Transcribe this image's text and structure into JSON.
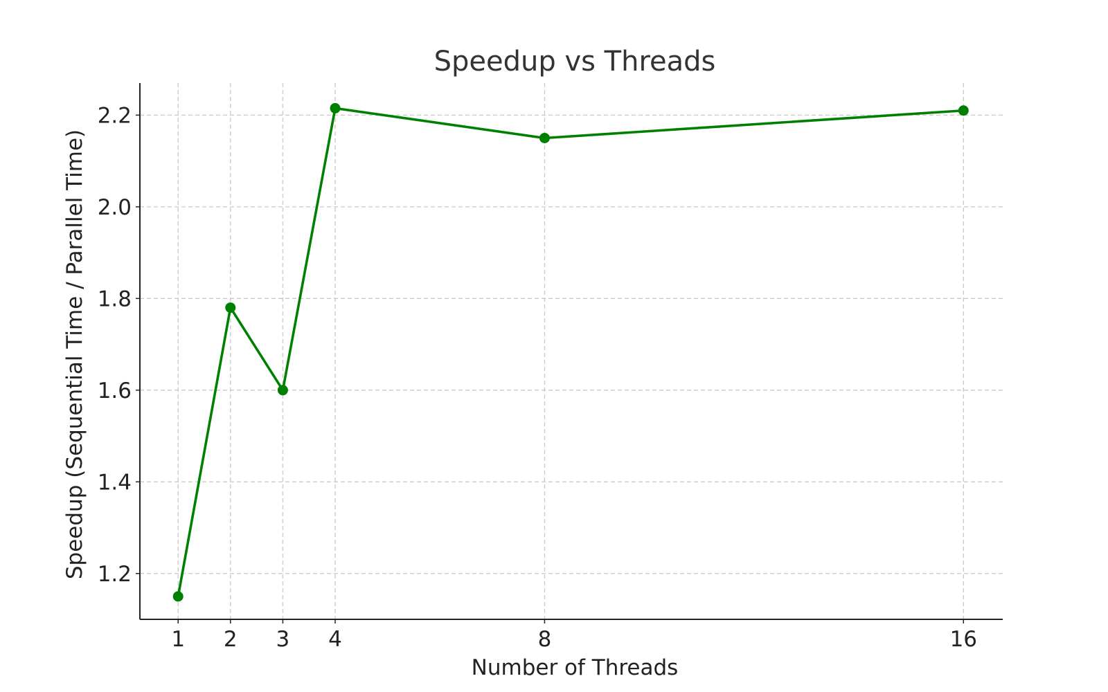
{
  "chart_data": {
    "type": "line",
    "title": "Speedup vs Threads",
    "xlabel": "Number of Threads",
    "ylabel": "Speedup (Sequential Time / Parallel Time)",
    "x": [
      1,
      2,
      3,
      4,
      8,
      16
    ],
    "x_tick_labels": [
      "1",
      "2",
      "3",
      "4",
      "8",
      "16"
    ],
    "y_ticks": [
      1.2,
      1.4,
      1.6,
      1.8,
      2.0,
      2.2
    ],
    "y_tick_labels": [
      "1.2",
      "1.4",
      "1.6",
      "1.8",
      "2.0",
      "2.2"
    ],
    "xlim": [
      0.27,
      16.75
    ],
    "ylim": [
      1.1,
      2.27
    ],
    "grid": true,
    "series": [
      {
        "values": [
          1.15,
          1.78,
          1.6,
          2.215,
          2.15,
          2.21
        ],
        "color": "#008000",
        "marker": "circle"
      }
    ]
  }
}
